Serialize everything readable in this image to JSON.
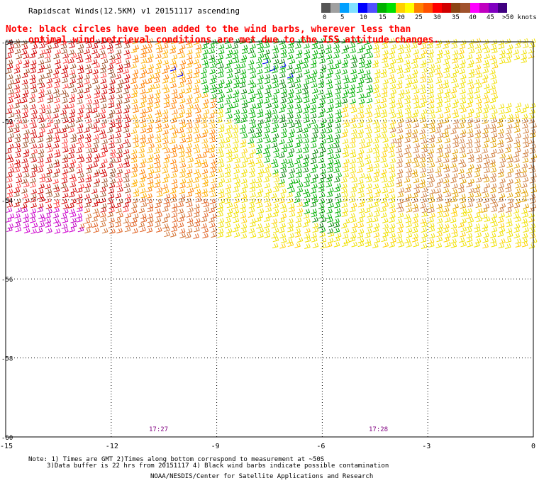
{
  "title": "Rapidscat Winds(12.5KM) v1 20151117 ascending",
  "note": {
    "line1": "Note: black circles have been added to the wind barbs, wherever less than",
    "line2": "optimal wind retrieval conditions are met due to the ISS attitude changes."
  },
  "legend": {
    "colors": [
      "#555555",
      "#a0a0a0",
      "#00a0ff",
      "#80e0ff",
      "#0000ff",
      "#5050ff",
      "#00b000",
      "#00e000",
      "#ffd000",
      "#ffff00",
      "#ff8000",
      "#ff5000",
      "#ff0000",
      "#d00000",
      "#8b4513",
      "#a0522d",
      "#ff00ff",
      "#c000c0",
      "#8000c0",
      "#400080"
    ],
    "labels": [
      "0",
      "5",
      "10",
      "15",
      "20",
      "25",
      "30",
      "35",
      "40",
      "45",
      ">50 knots"
    ]
  },
  "axes": {
    "lat_labels": [
      "-50",
      "-52",
      "-54",
      "-56",
      "-58",
      "-60"
    ],
    "lon_labels": [
      "-15",
      "-12",
      "-9",
      "-6",
      "-3",
      "0"
    ]
  },
  "times": [
    "17:27",
    "17:28"
  ],
  "footer": {
    "line1": "Note: 1) Times are GMT 2)Times along bottom correspond to measurement at ~50S",
    "line2": "3)Data buffer is 22 hrs from 20151117 4) Black wind barbs indicate possible contamination",
    "line3": "NOAA/NESDIS/Center for Satellite Applications and Research"
  }
}
